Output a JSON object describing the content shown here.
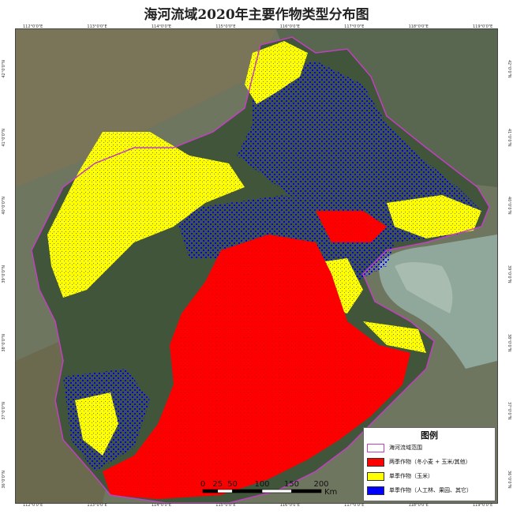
{
  "title": "海河流域2020年主要作物类型分布图",
  "graticule": {
    "top": [
      "112°0'0\"E",
      "113°0'0\"E",
      "114°0'0\"E",
      "115°0'0\"E",
      "116°0'0\"E",
      "117°0'0\"E",
      "118°0'0\"E",
      "119°0'0\"E"
    ],
    "bottom": [
      "112°0'0\"E",
      "113°0'0\"E",
      "114°0'0\"E",
      "115°0'0\"E",
      "116°0'0\"E",
      "117°0'0\"E",
      "118°0'0\"E",
      "119°0'0\"E"
    ],
    "left": [
      "42°0'0\"N",
      "41°0'0\"N",
      "40°0'0\"N",
      "39°0'0\"N",
      "38°0'0\"N",
      "37°0'0\"N",
      "36°0'0\"N"
    ],
    "right": [
      "42°0'0\"N",
      "41°0'0\"N",
      "40°0'0\"N",
      "39°0'0\"N",
      "38°0'0\"N",
      "37°0'0\"N",
      "36°0'0\"N"
    ]
  },
  "legend": {
    "title": "图例",
    "items": [
      {
        "label": "海河流域范围",
        "color": "#c040c0",
        "kind": "outline"
      },
      {
        "label": "两季作物（冬小麦 + 玉米/其他）",
        "color": "#ff0000",
        "kind": "fill"
      },
      {
        "label": "单季作物（玉米）",
        "color": "#ffff00",
        "kind": "fill"
      },
      {
        "label": "单季作物（人工林、果园、其它）",
        "color": "#0000ff",
        "kind": "fill"
      }
    ]
  },
  "scale": {
    "ticks": [
      0,
      25,
      50,
      100,
      150,
      200
    ],
    "unit": "Km"
  },
  "colors": {
    "boundary": "#c040c0",
    "double_crop": "#ff0000",
    "corn": "#ffff00",
    "other": "#0000ff",
    "terrain": "#5d6b4e",
    "sea": "#8fa89b"
  }
}
